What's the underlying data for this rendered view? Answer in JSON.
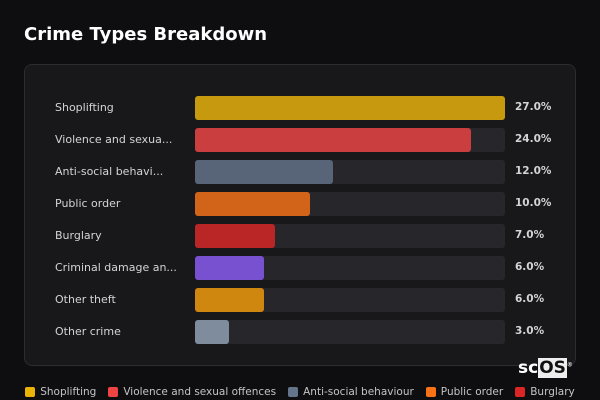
{
  "title": "Crime Types Breakdown",
  "logo": "scOS",
  "chart_data": {
    "type": "bar",
    "orientation": "horizontal",
    "title": "Crime Types Breakdown",
    "max": 27,
    "categories": [
      {
        "label": "Shoplifting",
        "value": 27.0,
        "pct": "27.0%",
        "color": "#eab308"
      },
      {
        "label": "Violence and sexua...",
        "value": 24.0,
        "pct": "24.0%",
        "color": "#ef4444"
      },
      {
        "label": "Anti-social behavi...",
        "value": 12.0,
        "pct": "12.0%",
        "color": "#64748b"
      },
      {
        "label": "Public order",
        "value": 10.0,
        "pct": "10.0%",
        "color": "#f97316"
      },
      {
        "label": "Burglary",
        "value": 7.0,
        "pct": "7.0%",
        "color": "#dc2626"
      },
      {
        "label": "Criminal damage an...",
        "value": 6.0,
        "pct": "6.0%",
        "color": "#8b5cf6"
      },
      {
        "label": "Other theft",
        "value": 6.0,
        "pct": "6.0%",
        "color": "#f59e0b"
      },
      {
        "label": "Other crime",
        "value": 3.0,
        "pct": "3.0%",
        "color": "#94a3b8"
      }
    ],
    "legend": [
      {
        "label": "Shoplifting",
        "color": "#eab308"
      },
      {
        "label": "Violence and sexual offences",
        "color": "#ef4444"
      },
      {
        "label": "Anti-social behaviour",
        "color": "#64748b"
      },
      {
        "label": "Public order",
        "color": "#f97316"
      },
      {
        "label": "Burglary",
        "color": "#dc2626"
      }
    ],
    "legend_position": "bottom"
  }
}
